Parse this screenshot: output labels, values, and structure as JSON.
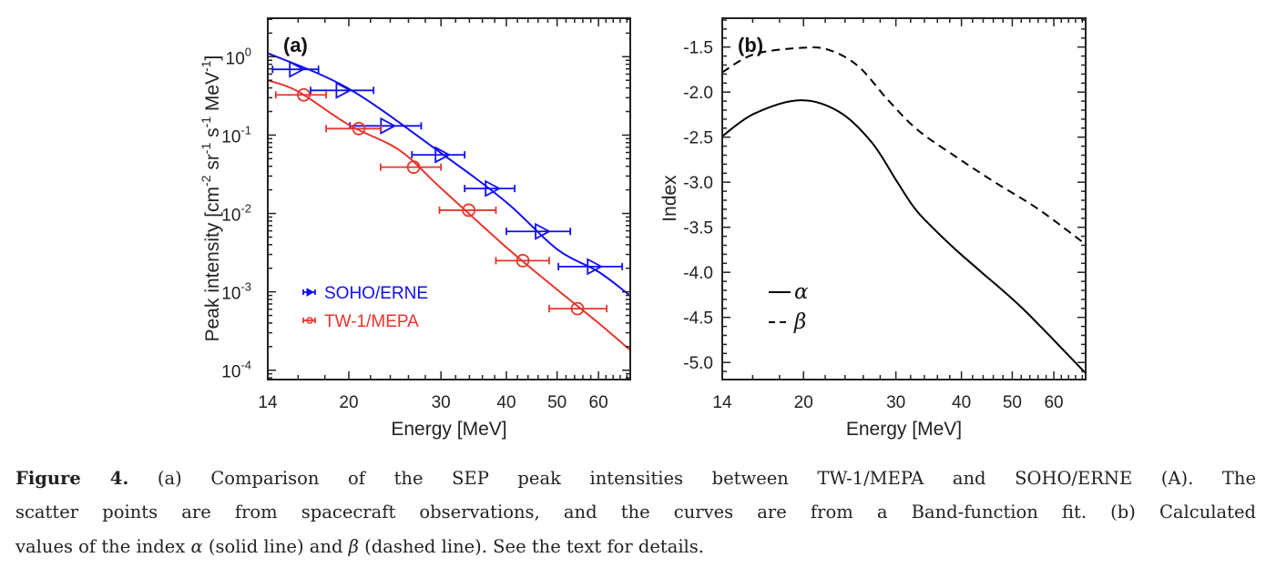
{
  "chart_data": [
    {
      "panel_label": "(a)",
      "type": "scatter",
      "xlabel": "Energy [MeV]",
      "ylabel": "Peak intensity [cm-2 sr-1 s-1 MeV-1]",
      "ylabel_parts": [
        "Peak intensity [cm",
        "-2",
        " sr",
        "-1",
        " s",
        "-1",
        " MeV",
        "-1",
        "]"
      ],
      "xscale": "log",
      "yscale": "log",
      "xlim": [
        14,
        69
      ],
      "ylim": [
        7.6e-05,
        3.1
      ],
      "xticks": [
        14,
        20,
        30,
        40,
        50,
        60
      ],
      "xtick_labels": [
        "14",
        "20",
        "30",
        "40",
        "50",
        "60"
      ],
      "yticks": [
        1,
        0.1,
        0.01,
        0.001,
        0.0001
      ],
      "ytick_labels": [
        [
          "10",
          "0"
        ],
        [
          "10",
          "-1"
        ],
        [
          "10",
          "-2"
        ],
        [
          "10",
          "-3"
        ],
        [
          "10",
          "-4"
        ]
      ],
      "legend_placement": "lower-left",
      "series": [
        {
          "name": "SOHO/ERNE",
          "color": "#1010ee",
          "marker": "triangle-right",
          "x": [
            15.8,
            19.4,
            23.6,
            30.0,
            37.4,
            46.6,
            58.6
          ],
          "y": [
            0.69,
            0.372,
            0.131,
            0.056,
            0.0208,
            0.0059,
            0.0021
          ],
          "xerr_low": [
            14.3,
            16.9,
            20.1,
            26.4,
            33.3,
            40.0,
            50.3
          ],
          "xerr_high": [
            17.5,
            22.3,
            27.5,
            33.3,
            41.5,
            53.0,
            66.6
          ],
          "fit_x": [
            14,
            20,
            30,
            40,
            50,
            60,
            69
          ],
          "fit_y": [
            1.11,
            0.39,
            0.059,
            0.0139,
            0.0035,
            0.0018,
            0.00089
          ]
        },
        {
          "name": "TW-1/MEPA",
          "color": "#e8352c",
          "marker": "circle",
          "x": [
            16.4,
            20.9,
            26.6,
            33.9,
            43.0,
            54.7
          ],
          "y": [
            0.326,
            0.121,
            0.039,
            0.011,
            0.0025,
            0.00061
          ],
          "xerr_low": [
            14.5,
            18.1,
            23.0,
            29.8,
            38.2,
            48.3
          ],
          "xerr_high": [
            18.1,
            23.0,
            30.0,
            38.2,
            48.3,
            62.2
          ],
          "fit_x": [
            14,
            16,
            20,
            25,
            30,
            40,
            50,
            60,
            69
          ],
          "fit_y": [
            0.5,
            0.36,
            0.135,
            0.064,
            0.021,
            0.0037,
            0.00107,
            0.0004,
            0.00018
          ]
        }
      ]
    },
    {
      "panel_label": "(b)",
      "type": "line",
      "xlabel": "Energy [MeV]",
      "ylabel": "Index",
      "xscale": "log",
      "xlim": [
        14,
        69
      ],
      "ylim": [
        -5.19,
        -1.18
      ],
      "xticks": [
        14,
        20,
        30,
        40,
        50,
        60
      ],
      "xtick_labels": [
        "14",
        "20",
        "30",
        "40",
        "50",
        "60"
      ],
      "yticks": [
        -1.5,
        -2.0,
        -2.5,
        -3.0,
        -3.5,
        -4.0,
        -4.5,
        -5.0
      ],
      "ytick_labels": [
        "-1.5",
        "-2.0",
        "-2.5",
        "-3.0",
        "-3.5",
        "-4.0",
        "-4.5",
        "-5.0"
      ],
      "legend_placement": "lower-left",
      "series": [
        {
          "name": "α",
          "style": "solid",
          "color": "#000000",
          "x": [
            14,
            16.1,
            19.7,
            23.4,
            27.0,
            30.2,
            33.0,
            38.2,
            43.3,
            52.5,
            69
          ],
          "y": [
            -2.49,
            -2.24,
            -2.09,
            -2.22,
            -2.56,
            -3.0,
            -3.33,
            -3.7,
            -3.98,
            -4.41,
            -5.12
          ]
        },
        {
          "name": "β",
          "style": "dashed",
          "color": "#000000",
          "x": [
            14,
            16.1,
            19.7,
            22.3,
            25.4,
            29.0,
            33.0,
            39.1,
            46.3,
            56.1,
            69
          ],
          "y": [
            -1.78,
            -1.58,
            -1.51,
            -1.53,
            -1.71,
            -2.09,
            -2.42,
            -2.72,
            -3.0,
            -3.3,
            -3.69
          ]
        }
      ]
    }
  ],
  "caption": {
    "label": "Figure 4.",
    "line1": " (a) Comparison of the SEP peak intensities between TW-1/MEPA and SOHO/ERNE (A). The",
    "line2": "scatter points are from spacecraft observations, and the curves are from a Band-function fit. (b) Calculated",
    "line3_a": "values of the index ",
    "alpha": "α",
    "line3_b": " (solid line) and ",
    "beta": "β",
    "line3_c": " (dashed line). See the text for details."
  }
}
